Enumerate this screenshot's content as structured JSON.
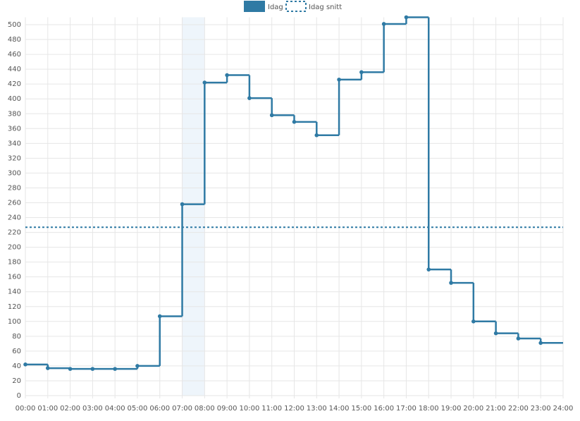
{
  "chart_data": {
    "type": "step",
    "categories": [
      "00:00",
      "01:00",
      "02:00",
      "03:00",
      "04:00",
      "05:00",
      "06:00",
      "07:00",
      "08:00",
      "09:00",
      "10:00",
      "11:00",
      "12:00",
      "13:00",
      "14:00",
      "15:00",
      "16:00",
      "17:00",
      "18:00",
      "19:00",
      "20:00",
      "21:00",
      "22:00",
      "23:00",
      "24:00"
    ],
    "series": [
      {
        "name": "Idag",
        "color": "#2f7aa4",
        "values": [
          42,
          37,
          36,
          36,
          36,
          40,
          107,
          258,
          422,
          432,
          401,
          378,
          369,
          351,
          426,
          436,
          501,
          510,
          170,
          152,
          100,
          84,
          77,
          71,
          null
        ]
      }
    ],
    "average": {
      "name": "Idag snitt",
      "color": "#2f7aa4",
      "value": 227
    },
    "highlight_index": 7,
    "ylim": [
      0,
      510
    ],
    "yticks": [
      0,
      20,
      40,
      60,
      80,
      100,
      120,
      140,
      160,
      180,
      200,
      220,
      240,
      260,
      280,
      300,
      320,
      340,
      360,
      380,
      400,
      420,
      440,
      460,
      480,
      500
    ],
    "grid": true,
    "legend": "top"
  }
}
